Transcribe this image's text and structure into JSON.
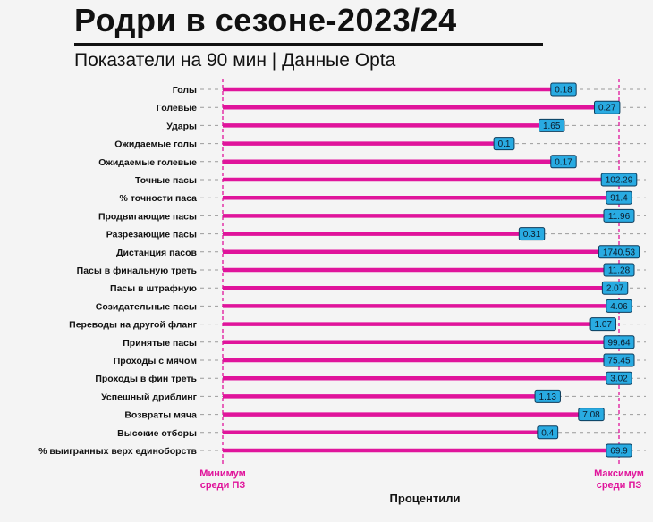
{
  "header": {
    "title": "Родри в сезоне-2023/24",
    "subtitle": "Показатели на 90 мин | Данные  Opta"
  },
  "annotations": {
    "min_label_line1": "Минимум",
    "min_label_line2": "среди ПЗ",
    "max_label_line1": "Максимум",
    "max_label_line2": "среди ПЗ"
  },
  "colors": {
    "bar": "#e0149b",
    "label_fill": "#29abe2",
    "label_stroke": "#0b3a5a",
    "guide": "#e0149b",
    "grid": "#9a9a9a"
  },
  "chart_data": {
    "type": "bar",
    "orientation": "horizontal",
    "xlabel": "Процентили",
    "xlim": [
      0,
      100
    ],
    "grid": true,
    "categories": [
      "Голы",
      "Голевые",
      "Удары",
      "Ожидаемые голы",
      "Ожидаемые голевые",
      "Точные пасы",
      "% точности паса",
      "Продвигающие пасы",
      "Разрезающие пасы",
      "Дистанция пасов",
      "Пасы в финальную треть",
      "Пасы в штрафную",
      "Созидательные пасы",
      "Переводы на другой фланг",
      "Принятые пасы",
      "Проходы с мячом",
      "Проходы в фин треть",
      "Успешный дриблинг",
      "Возвраты мяча",
      "Высокие отборы",
      "% выигранных верх единоборств"
    ],
    "percentiles": [
      86,
      97,
      83,
      71,
      86,
      100,
      100,
      100,
      78,
      100,
      100,
      99,
      100,
      96,
      100,
      100,
      100,
      82,
      93,
      82,
      100
    ],
    "value_labels": [
      "0.18",
      "0.27",
      "1.65",
      "0.1",
      "0.17",
      "102.29",
      "91.4",
      "11.96",
      "0.31",
      "1740.53",
      "11.28",
      "2.07",
      "4.06",
      "1.07",
      "99.64",
      "75.45",
      "3.02",
      "1.13",
      "7.08",
      "0.4",
      "69.9"
    ]
  }
}
